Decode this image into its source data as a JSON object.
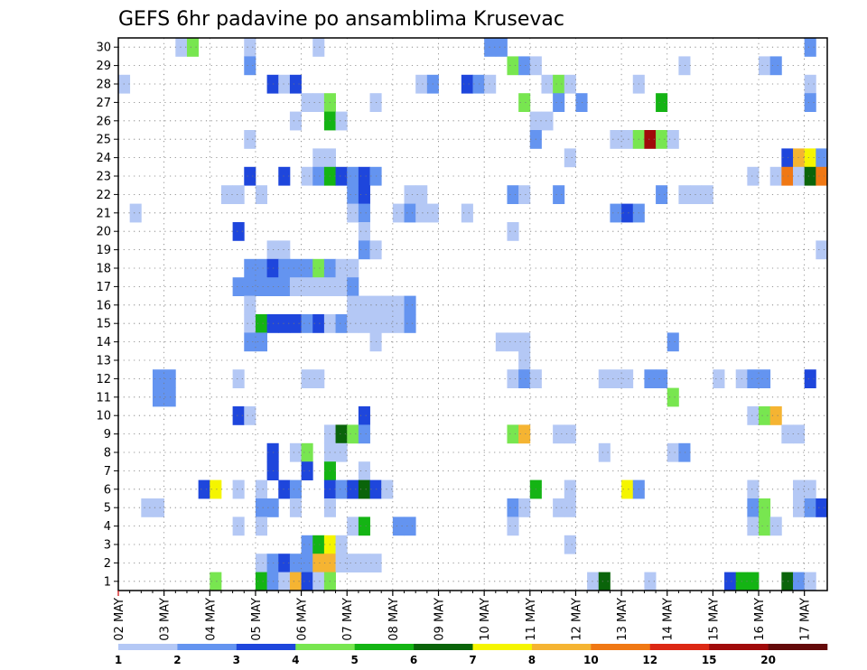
{
  "chart_data": {
    "type": "heatmap",
    "title": "GEFS 6hr padavine po ansamblima Krusevac",
    "xlabel": "",
    "ylabel": "",
    "x_tick_labels": [
      "02 MAY",
      "03 MAY",
      "04 MAY",
      "05 MAY",
      "06 MAY",
      "07 MAY",
      "08 MAY",
      "09 MAY",
      "10 MAY",
      "11 MAY",
      "12 MAY",
      "13 MAY",
      "14 MAY",
      "15 MAY",
      "16 MAY",
      "17 MAY"
    ],
    "y_tick_labels": [
      "1",
      "2",
      "3",
      "4",
      "5",
      "6",
      "7",
      "8",
      "9",
      "10",
      "11",
      "12",
      "13",
      "14",
      "15",
      "16",
      "17",
      "18",
      "19",
      "20",
      "21",
      "22",
      "23",
      "24",
      "25",
      "26",
      "27",
      "28",
      "29",
      "30"
    ],
    "grid": true,
    "colorbar": {
      "position": "bottom",
      "colors": [
        "#b4c8f5",
        "#6494f0",
        "#1e46dc",
        "#78e650",
        "#14b414",
        "#0a640a",
        "#f5f500",
        "#f5b432",
        "#f07814",
        "#dc2814",
        "#a00a0a",
        "#640a0a"
      ],
      "labels": [
        "1",
        "2",
        "3",
        "4",
        "5",
        "6",
        "7",
        "8",
        "10",
        "12",
        "15",
        "20"
      ]
    },
    "cells": [
      [
        5,
        30,
        1
      ],
      [
        6,
        30,
        4
      ],
      [
        11,
        30,
        1
      ],
      [
        17,
        30,
        1
      ],
      [
        32,
        30,
        2
      ],
      [
        33,
        30,
        2
      ],
      [
        60,
        30,
        2
      ],
      [
        11,
        29,
        2
      ],
      [
        34,
        29,
        4
      ],
      [
        35,
        29,
        2
      ],
      [
        36,
        29,
        1
      ],
      [
        49,
        29,
        1
      ],
      [
        56,
        29,
        1
      ],
      [
        57,
        29,
        2
      ],
      [
        0,
        28,
        1
      ],
      [
        13,
        28,
        3
      ],
      [
        14,
        28,
        1
      ],
      [
        15,
        28,
        3
      ],
      [
        26,
        28,
        1
      ],
      [
        27,
        28,
        2
      ],
      [
        30,
        28,
        3
      ],
      [
        31,
        28,
        2
      ],
      [
        32,
        28,
        1
      ],
      [
        37,
        28,
        1
      ],
      [
        38,
        28,
        4
      ],
      [
        39,
        28,
        1
      ],
      [
        45,
        28,
        1
      ],
      [
        60,
        28,
        1
      ],
      [
        16,
        27,
        1
      ],
      [
        17,
        27,
        1
      ],
      [
        18,
        27,
        4
      ],
      [
        22,
        27,
        1
      ],
      [
        35,
        27,
        4
      ],
      [
        38,
        27,
        2
      ],
      [
        40,
        27,
        2
      ],
      [
        47,
        27,
        5
      ],
      [
        60,
        27,
        2
      ],
      [
        15,
        26,
        1
      ],
      [
        18,
        26,
        5
      ],
      [
        19,
        26,
        1
      ],
      [
        36,
        26,
        1
      ],
      [
        37,
        26,
        1
      ],
      [
        11,
        25,
        1
      ],
      [
        36,
        25,
        2
      ],
      [
        43,
        25,
        1
      ],
      [
        44,
        25,
        1
      ],
      [
        45,
        25,
        4
      ],
      [
        46,
        25,
        11
      ],
      [
        47,
        25,
        4
      ],
      [
        48,
        25,
        1
      ],
      [
        17,
        24,
        1
      ],
      [
        18,
        24,
        1
      ],
      [
        39,
        24,
        1
      ],
      [
        58,
        24,
        3
      ],
      [
        59,
        24,
        8
      ],
      [
        60,
        24,
        7
      ],
      [
        61,
        24,
        2
      ],
      [
        11,
        23,
        3
      ],
      [
        14,
        23,
        3
      ],
      [
        16,
        23,
        1
      ],
      [
        17,
        23,
        2
      ],
      [
        18,
        23,
        5
      ],
      [
        19,
        23,
        3
      ],
      [
        20,
        23,
        2
      ],
      [
        21,
        23,
        3
      ],
      [
        22,
        23,
        2
      ],
      [
        55,
        23,
        1
      ],
      [
        57,
        23,
        1
      ],
      [
        58,
        23,
        9
      ],
      [
        59,
        23,
        1
      ],
      [
        60,
        23,
        6
      ],
      [
        61,
        23,
        9
      ],
      [
        9,
        22,
        1
      ],
      [
        10,
        22,
        1
      ],
      [
        12,
        22,
        1
      ],
      [
        20,
        22,
        2
      ],
      [
        21,
        22,
        3
      ],
      [
        25,
        22,
        1
      ],
      [
        26,
        22,
        1
      ],
      [
        34,
        22,
        2
      ],
      [
        35,
        22,
        1
      ],
      [
        38,
        22,
        2
      ],
      [
        47,
        22,
        2
      ],
      [
        49,
        22,
        1
      ],
      [
        50,
        22,
        1
      ],
      [
        51,
        22,
        1
      ],
      [
        1,
        21,
        1
      ],
      [
        20,
        21,
        1
      ],
      [
        21,
        21,
        2
      ],
      [
        24,
        21,
        1
      ],
      [
        25,
        21,
        2
      ],
      [
        26,
        21,
        1
      ],
      [
        27,
        21,
        1
      ],
      [
        30,
        21,
        1
      ],
      [
        43,
        21,
        2
      ],
      [
        44,
        21,
        3
      ],
      [
        45,
        21,
        2
      ],
      [
        10,
        20,
        3
      ],
      [
        21,
        20,
        1
      ],
      [
        34,
        20,
        1
      ],
      [
        13,
        19,
        1
      ],
      [
        14,
        19,
        1
      ],
      [
        21,
        19,
        2
      ],
      [
        22,
        19,
        1
      ],
      [
        61,
        19,
        1
      ],
      [
        11,
        18,
        2
      ],
      [
        12,
        18,
        2
      ],
      [
        13,
        18,
        3
      ],
      [
        14,
        18,
        2
      ],
      [
        15,
        18,
        2
      ],
      [
        16,
        18,
        2
      ],
      [
        17,
        18,
        4
      ],
      [
        18,
        18,
        2
      ],
      [
        19,
        18,
        1
      ],
      [
        20,
        18,
        1
      ],
      [
        10,
        17,
        2
      ],
      [
        11,
        17,
        2
      ],
      [
        12,
        17,
        2
      ],
      [
        13,
        17,
        2
      ],
      [
        14,
        17,
        2
      ],
      [
        15,
        17,
        1
      ],
      [
        16,
        17,
        1
      ],
      [
        17,
        17,
        1
      ],
      [
        18,
        17,
        1
      ],
      [
        19,
        17,
        1
      ],
      [
        20,
        17,
        2
      ],
      [
        11,
        16,
        1
      ],
      [
        20,
        16,
        1
      ],
      [
        21,
        16,
        1
      ],
      [
        22,
        16,
        1
      ],
      [
        23,
        16,
        1
      ],
      [
        24,
        16,
        1
      ],
      [
        25,
        16,
        2
      ],
      [
        11,
        15,
        1
      ],
      [
        12,
        15,
        5
      ],
      [
        13,
        15,
        3
      ],
      [
        14,
        15,
        3
      ],
      [
        15,
        15,
        3
      ],
      [
        16,
        15,
        2
      ],
      [
        17,
        15,
        3
      ],
      [
        18,
        15,
        1
      ],
      [
        19,
        15,
        2
      ],
      [
        20,
        15,
        1
      ],
      [
        21,
        15,
        1
      ],
      [
        22,
        15,
        1
      ],
      [
        23,
        15,
        1
      ],
      [
        24,
        15,
        1
      ],
      [
        25,
        15,
        2
      ],
      [
        11,
        14,
        2
      ],
      [
        12,
        14,
        2
      ],
      [
        22,
        14,
        1
      ],
      [
        33,
        14,
        1
      ],
      [
        34,
        14,
        1
      ],
      [
        35,
        14,
        1
      ],
      [
        48,
        14,
        2
      ],
      [
        35,
        13,
        1
      ],
      [
        3,
        12,
        2
      ],
      [
        4,
        12,
        2
      ],
      [
        10,
        12,
        1
      ],
      [
        16,
        12,
        1
      ],
      [
        17,
        12,
        1
      ],
      [
        34,
        12,
        1
      ],
      [
        35,
        12,
        2
      ],
      [
        36,
        12,
        1
      ],
      [
        42,
        12,
        1
      ],
      [
        43,
        12,
        1
      ],
      [
        44,
        12,
        1
      ],
      [
        46,
        12,
        2
      ],
      [
        47,
        12,
        2
      ],
      [
        52,
        12,
        1
      ],
      [
        54,
        12,
        1
      ],
      [
        55,
        12,
        2
      ],
      [
        56,
        12,
        2
      ],
      [
        60,
        12,
        3
      ],
      [
        3,
        11,
        2
      ],
      [
        4,
        11,
        2
      ],
      [
        48,
        11,
        4
      ],
      [
        10,
        10,
        3
      ],
      [
        11,
        10,
        1
      ],
      [
        21,
        10,
        3
      ],
      [
        55,
        10,
        1
      ],
      [
        56,
        10,
        4
      ],
      [
        57,
        10,
        8
      ],
      [
        18,
        9,
        1
      ],
      [
        19,
        9,
        6
      ],
      [
        20,
        9,
        4
      ],
      [
        21,
        9,
        2
      ],
      [
        34,
        9,
        4
      ],
      [
        35,
        9,
        8
      ],
      [
        38,
        9,
        1
      ],
      [
        39,
        9,
        1
      ],
      [
        58,
        9,
        1
      ],
      [
        59,
        9,
        1
      ],
      [
        13,
        8,
        3
      ],
      [
        15,
        8,
        1
      ],
      [
        16,
        8,
        4
      ],
      [
        18,
        8,
        1
      ],
      [
        19,
        8,
        1
      ],
      [
        42,
        8,
        1
      ],
      [
        48,
        8,
        1
      ],
      [
        49,
        8,
        2
      ],
      [
        13,
        7,
        3
      ],
      [
        16,
        7,
        3
      ],
      [
        18,
        7,
        5
      ],
      [
        21,
        7,
        1
      ],
      [
        7,
        6,
        3
      ],
      [
        8,
        6,
        7
      ],
      [
        10,
        6,
        1
      ],
      [
        12,
        6,
        1
      ],
      [
        14,
        6,
        3
      ],
      [
        15,
        6,
        2
      ],
      [
        18,
        6,
        3
      ],
      [
        19,
        6,
        2
      ],
      [
        20,
        6,
        3
      ],
      [
        21,
        6,
        6
      ],
      [
        22,
        6,
        3
      ],
      [
        23,
        6,
        1
      ],
      [
        36,
        6,
        5
      ],
      [
        39,
        6,
        1
      ],
      [
        44,
        6,
        7
      ],
      [
        45,
        6,
        2
      ],
      [
        55,
        6,
        1
      ],
      [
        59,
        6,
        1
      ],
      [
        60,
        6,
        1
      ],
      [
        2,
        5,
        1
      ],
      [
        3,
        5,
        1
      ],
      [
        12,
        5,
        2
      ],
      [
        13,
        5,
        2
      ],
      [
        15,
        5,
        1
      ],
      [
        18,
        5,
        1
      ],
      [
        34,
        5,
        2
      ],
      [
        35,
        5,
        1
      ],
      [
        38,
        5,
        1
      ],
      [
        39,
        5,
        1
      ],
      [
        55,
        5,
        2
      ],
      [
        56,
        5,
        4
      ],
      [
        59,
        5,
        1
      ],
      [
        60,
        5,
        2
      ],
      [
        61,
        5,
        3
      ],
      [
        10,
        4,
        1
      ],
      [
        12,
        4,
        1
      ],
      [
        20,
        4,
        1
      ],
      [
        21,
        4,
        5
      ],
      [
        24,
        4,
        2
      ],
      [
        25,
        4,
        2
      ],
      [
        34,
        4,
        1
      ],
      [
        55,
        4,
        1
      ],
      [
        56,
        4,
        4
      ],
      [
        57,
        4,
        1
      ],
      [
        16,
        3,
        2
      ],
      [
        17,
        3,
        5
      ],
      [
        18,
        3,
        7
      ],
      [
        19,
        3,
        1
      ],
      [
        39,
        3,
        1
      ],
      [
        12,
        2,
        1
      ],
      [
        13,
        2,
        2
      ],
      [
        14,
        2,
        3
      ],
      [
        15,
        2,
        2
      ],
      [
        16,
        2,
        2
      ],
      [
        17,
        2,
        8
      ],
      [
        18,
        2,
        8
      ],
      [
        19,
        2,
        1
      ],
      [
        20,
        2,
        1
      ],
      [
        21,
        2,
        1
      ],
      [
        22,
        2,
        1
      ],
      [
        8,
        1,
        4
      ],
      [
        12,
        1,
        5
      ],
      [
        13,
        1,
        2
      ],
      [
        14,
        1,
        1
      ],
      [
        15,
        1,
        8
      ],
      [
        16,
        1,
        3
      ],
      [
        17,
        1,
        1
      ],
      [
        18,
        1,
        4
      ],
      [
        41,
        1,
        1
      ],
      [
        42,
        1,
        6
      ],
      [
        46,
        1,
        1
      ],
      [
        53,
        1,
        3
      ],
      [
        54,
        1,
        5
      ],
      [
        55,
        1,
        5
      ],
      [
        58,
        1,
        6
      ],
      [
        59,
        1,
        2
      ],
      [
        60,
        1,
        1
      ]
    ]
  }
}
